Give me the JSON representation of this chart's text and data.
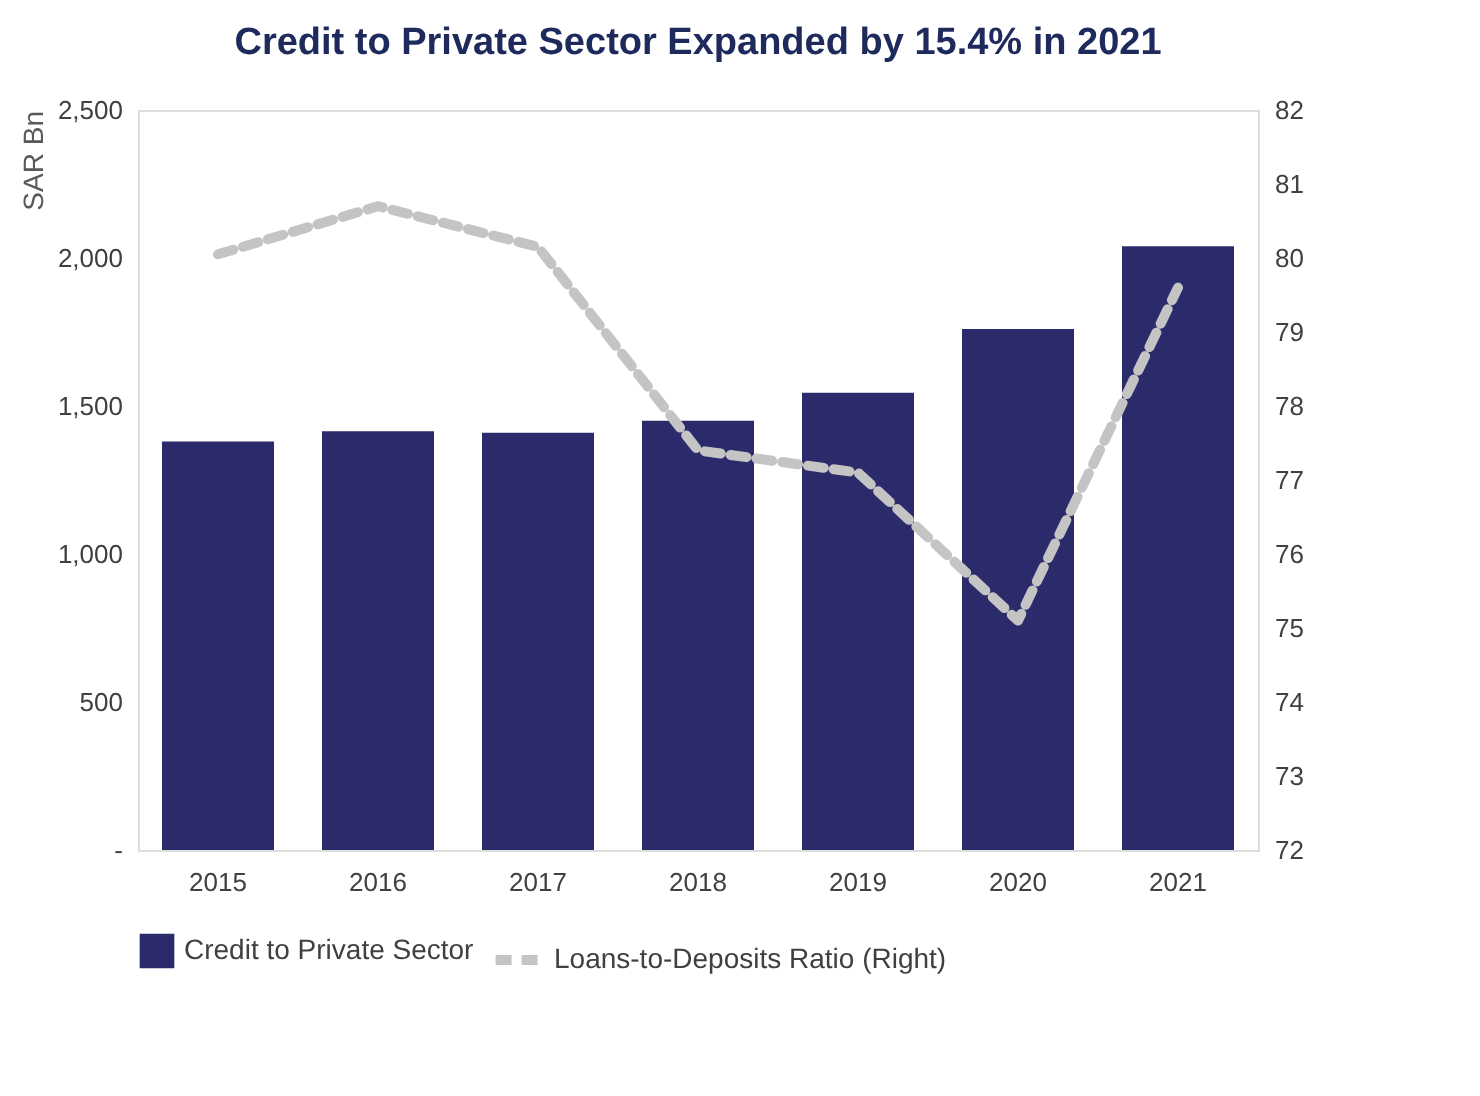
{
  "chart_data": {
    "type": "bar",
    "title": "Credit to Private Sector Expanded by 15.4% in 2021",
    "ylabel": "SAR Bn",
    "categories": [
      "2015",
      "2016",
      "2017",
      "2018",
      "2019",
      "2020",
      "2021"
    ],
    "series": [
      {
        "name": "Credit to Private Sector",
        "type": "bar",
        "color": "#2b2a6b",
        "values": [
          1380,
          1415,
          1410,
          1450,
          1545,
          1760,
          2040
        ]
      },
      {
        "name": "Loans-to-Deposits Ratio (Right)",
        "type": "line",
        "axis": "y2",
        "line_style": "dashed",
        "color": "#c4c4c4",
        "values": [
          80.05,
          80.7,
          80.15,
          77.4,
          77.1,
          75.1,
          79.6
        ]
      }
    ],
    "ylim": [
      0,
      2500
    ],
    "yticks": [
      {
        "value": 0,
        "label": "-"
      },
      500,
      {
        "value": 1000,
        "label": "1,000"
      },
      {
        "value": 1500,
        "label": "1,500"
      },
      {
        "value": 2000,
        "label": "2,000"
      },
      {
        "value": 2500,
        "label": "2,500"
      }
    ],
    "y2lim": [
      72,
      82
    ],
    "y2ticks": [
      72,
      73,
      74,
      75,
      76,
      77,
      78,
      79,
      80,
      81,
      82
    ],
    "grid": false,
    "legend": "bottom"
  }
}
